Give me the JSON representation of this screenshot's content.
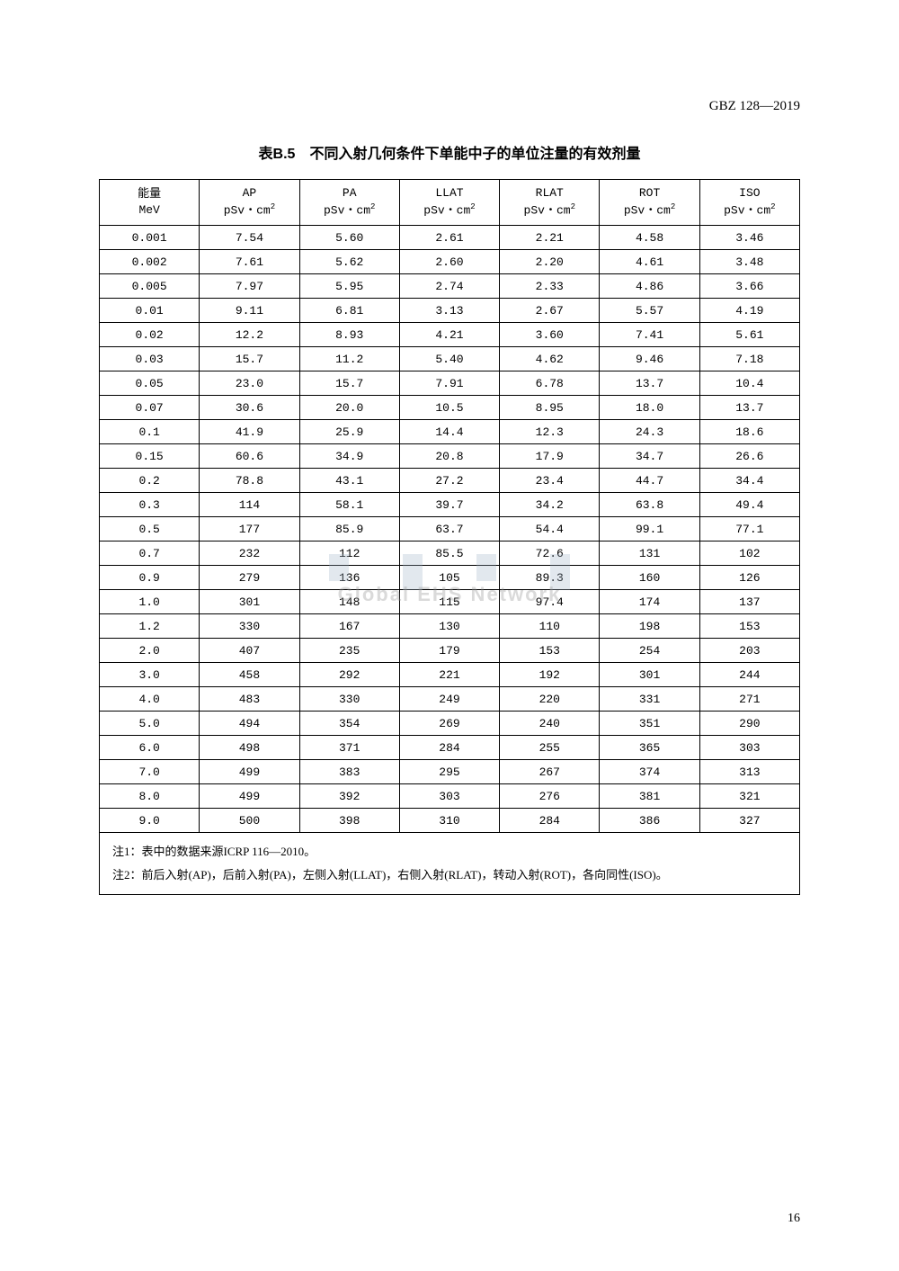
{
  "doc_number": "GBZ 128—2019",
  "table_title": "表B.5　不同入射几何条件下单能中子的单位注量的有效剂量",
  "page_number": "16",
  "watermark": "Global EHS Network",
  "table": {
    "columns": [
      {
        "label": "能量",
        "unit": "MeV"
      },
      {
        "label": "AP",
        "unit": "pSv·cm²"
      },
      {
        "label": "PA",
        "unit": "pSv·cm²"
      },
      {
        "label": "LLAT",
        "unit": "pSv·cm²"
      },
      {
        "label": "RLAT",
        "unit": "pSv·cm²"
      },
      {
        "label": "ROT",
        "unit": "pSv·cm²"
      },
      {
        "label": "ISO",
        "unit": "pSv·cm²"
      }
    ],
    "rows": [
      [
        "0.001",
        "7.54",
        "5.60",
        "2.61",
        "2.21",
        "4.58",
        "3.46"
      ],
      [
        "0.002",
        "7.61",
        "5.62",
        "2.60",
        "2.20",
        "4.61",
        "3.48"
      ],
      [
        "0.005",
        "7.97",
        "5.95",
        "2.74",
        "2.33",
        "4.86",
        "3.66"
      ],
      [
        "0.01",
        "9.11",
        "6.81",
        "3.13",
        "2.67",
        "5.57",
        "4.19"
      ],
      [
        "0.02",
        "12.2",
        "8.93",
        "4.21",
        "3.60",
        "7.41",
        "5.61"
      ],
      [
        "0.03",
        "15.7",
        "11.2",
        "5.40",
        "4.62",
        "9.46",
        "7.18"
      ],
      [
        "0.05",
        "23.0",
        "15.7",
        "7.91",
        "6.78",
        "13.7",
        "10.4"
      ],
      [
        "0.07",
        "30.6",
        "20.0",
        "10.5",
        "8.95",
        "18.0",
        "13.7"
      ],
      [
        "0.1",
        "41.9",
        "25.9",
        "14.4",
        "12.3",
        "24.3",
        "18.6"
      ],
      [
        "0.15",
        "60.6",
        "34.9",
        "20.8",
        "17.9",
        "34.7",
        "26.6"
      ],
      [
        "0.2",
        "78.8",
        "43.1",
        "27.2",
        "23.4",
        "44.7",
        "34.4"
      ],
      [
        "0.3",
        "114",
        "58.1",
        "39.7",
        "34.2",
        "63.8",
        "49.4"
      ],
      [
        "0.5",
        "177",
        "85.9",
        "63.7",
        "54.4",
        "99.1",
        "77.1"
      ],
      [
        "0.7",
        "232",
        "112",
        "85.5",
        "72.6",
        "131",
        "102"
      ],
      [
        "0.9",
        "279",
        "136",
        "105",
        "89.3",
        "160",
        "126"
      ],
      [
        "1.0",
        "301",
        "148",
        "115",
        "97.4",
        "174",
        "137"
      ],
      [
        "1.2",
        "330",
        "167",
        "130",
        "110",
        "198",
        "153"
      ],
      [
        "2.0",
        "407",
        "235",
        "179",
        "153",
        "254",
        "203"
      ],
      [
        "3.0",
        "458",
        "292",
        "221",
        "192",
        "301",
        "244"
      ],
      [
        "4.0",
        "483",
        "330",
        "249",
        "220",
        "331",
        "271"
      ],
      [
        "5.0",
        "494",
        "354",
        "269",
        "240",
        "351",
        "290"
      ],
      [
        "6.0",
        "498",
        "371",
        "284",
        "255",
        "365",
        "303"
      ],
      [
        "7.0",
        "499",
        "383",
        "295",
        "267",
        "374",
        "313"
      ],
      [
        "8.0",
        "499",
        "392",
        "303",
        "276",
        "381",
        "321"
      ],
      [
        "9.0",
        "500",
        "398",
        "310",
        "284",
        "386",
        "327"
      ]
    ],
    "notes": [
      "注1：表中的数据来源ICRP 116—2010。",
      "注2：前后入射(AP)，后前入射(PA)，左侧入射(LLAT)，右侧入射(RLAT)，转动入射(ROT)，各向同性(ISO)。"
    ]
  }
}
